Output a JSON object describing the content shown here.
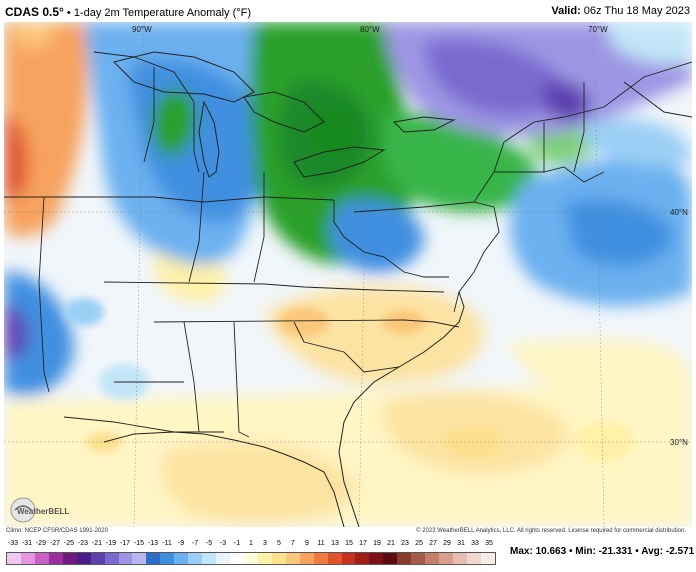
{
  "header": {
    "model": "CDAS 0.5°",
    "bullet": "•",
    "product": "1-day 2m Temperature Anomaly (°F)",
    "valid_label": "Valid:",
    "valid_time": "06z Thu 18 May 2023"
  },
  "map": {
    "lon_labels": [
      "90°W",
      "80°W",
      "70°W"
    ],
    "lat_labels": [
      "40°N",
      "30°N"
    ]
  },
  "footer": {
    "climo": "Climo: NCEP CFSR/CDAS 1991-2020",
    "copyright": "© 2023 WeatherBELL Analytics, LLC. All rights reserved. License required for commercial distribution.",
    "logo_text": "WeatherBELL"
  },
  "colorbar": {
    "labels": [
      "-33",
      "-31",
      "-29",
      "-27",
      "-25",
      "-23",
      "-21",
      "-19",
      "-17",
      "-15",
      "-13",
      "-11",
      "-9",
      "-7",
      "-5",
      "-3",
      "-1",
      "1",
      "3",
      "5",
      "7",
      "9",
      "11",
      "13",
      "15",
      "17",
      "19",
      "21",
      "23",
      "25",
      "27",
      "29",
      "31",
      "33",
      "35"
    ],
    "colors": [
      "#f2c6ee",
      "#e596e0",
      "#c860c6",
      "#9b2f9e",
      "#6e1a7e",
      "#4b1c8a",
      "#5d3fb0",
      "#7a6ad0",
      "#9e96e4",
      "#b9b6ee",
      "#2c6fcb",
      "#3f8fe0",
      "#6cb1f0",
      "#9bcff5",
      "#c2e6f8",
      "#e8f4fb",
      "#ffffff",
      "#ffffe0",
      "#fff1a8",
      "#fde08e",
      "#fbc77a",
      "#f7a35f",
      "#ef7a3f",
      "#e0522a",
      "#c4321f",
      "#a11e1a",
      "#7c1215",
      "#5a0c10",
      "#8a3b2d",
      "#a65a48",
      "#c48067",
      "#d8a08c",
      "#e6bfb0",
      "#f1d8cf",
      "#f8ece6"
    ],
    "stats": {
      "max_label": "Max:",
      "max": "10.663",
      "min_label": "Min:",
      "min": "-21.331",
      "avg_label": "Avg:",
      "avg": "-2.571",
      "sep": "•"
    }
  }
}
